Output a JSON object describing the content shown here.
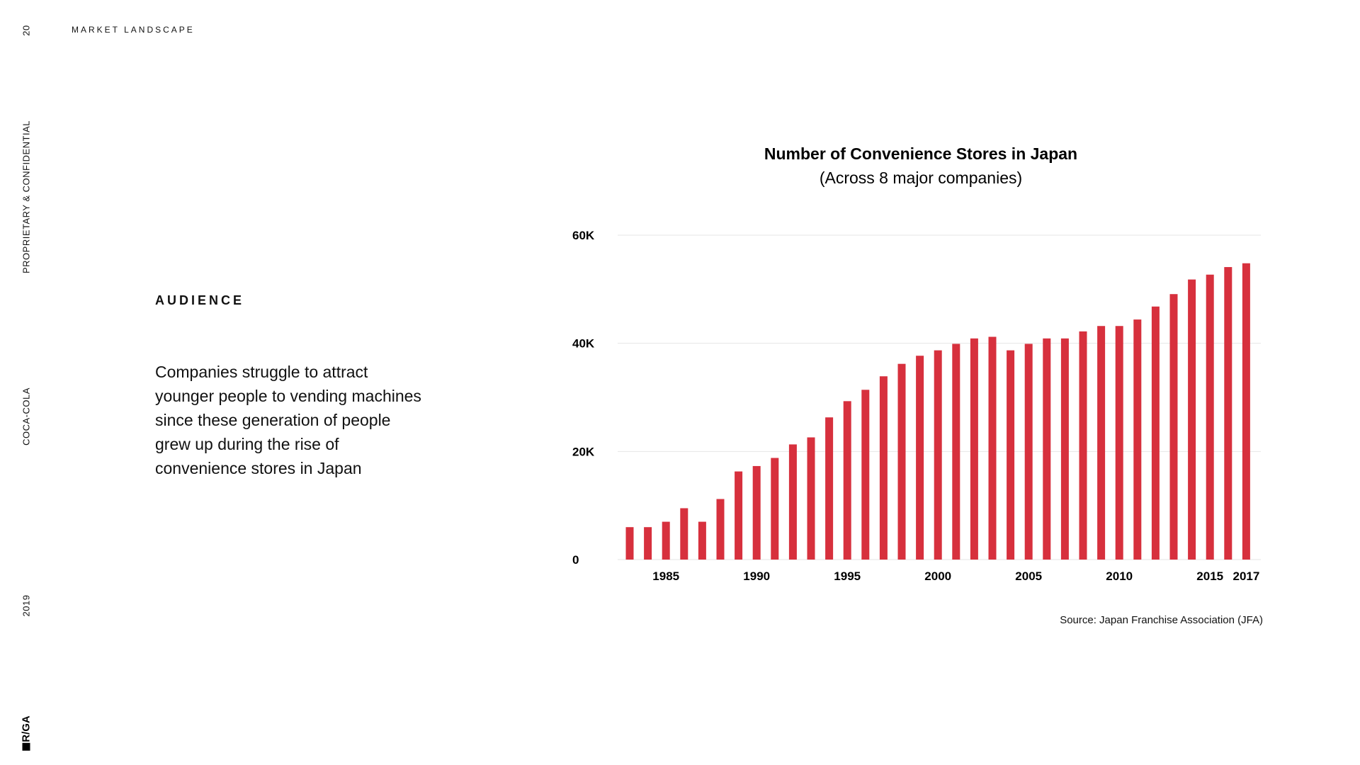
{
  "side_rail": {
    "page_number": "20",
    "confidential": "PROPRIETARY & CONFIDENTIAL",
    "client": "COCA-COLA",
    "year": "2019",
    "logo_text": "R/GA"
  },
  "header": {
    "section": "MARKET LANDSCAPE"
  },
  "audience": {
    "heading": "AUDIENCE",
    "body": "Companies struggle to attract younger people to vending machines since these generation of people grew up during the rise of convenience stores in Japan"
  },
  "chart_source": "Source: Japan Franchise Association (JFA)",
  "colors": {
    "bar": "#d7303d",
    "grid": "#e6e6e6",
    "text": "#111111"
  },
  "chart_data": {
    "type": "bar",
    "title": "Number of Convenience Stores in Japan",
    "subtitle": "(Across 8 major companies)",
    "xlabel": "",
    "ylabel": "",
    "x": [
      1983,
      1984,
      1985,
      1986,
      1987,
      1988,
      1989,
      1990,
      1991,
      1992,
      1993,
      1994,
      1995,
      1996,
      1997,
      1998,
      1999,
      2000,
      2001,
      2002,
      2003,
      2004,
      2005,
      2006,
      2007,
      2008,
      2009,
      2010,
      2011,
      2012,
      2013,
      2014,
      2015,
      2016,
      2017
    ],
    "values": [
      6000,
      6000,
      7000,
      9500,
      7000,
      11200,
      16300,
      17300,
      18800,
      21300,
      22600,
      26300,
      29300,
      31400,
      33900,
      36200,
      37700,
      38700,
      39900,
      40900,
      41200,
      38700,
      39900,
      40900,
      40900,
      42200,
      43200,
      43200,
      44400,
      46800,
      49100,
      51800,
      52700,
      54100,
      54800
    ],
    "ylim": [
      0,
      60000
    ],
    "yticks": [
      0,
      20000,
      40000,
      60000
    ],
    "ytick_labels": [
      "0",
      "20K",
      "40K",
      "60K"
    ],
    "xticks": [
      1985,
      1990,
      1995,
      2000,
      2005,
      2010,
      2015,
      2017
    ],
    "xtick_labels": [
      "1985",
      "1990",
      "1995",
      "2000",
      "2005",
      "2010",
      "2015",
      "2017"
    ],
    "grid": true,
    "legend": "none"
  }
}
